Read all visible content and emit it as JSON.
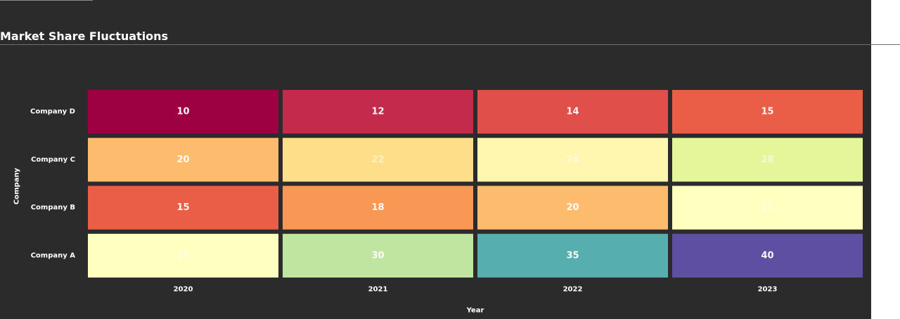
{
  "page": {
    "title": "Market Share Fluctuations"
  },
  "colors": {
    "panel_background": "#2b2b2b",
    "cell_border": "#2b2b2b",
    "label_text": "#ffffff",
    "colormap": "Spectral"
  },
  "chart_data": {
    "type": "heatmap",
    "title": "",
    "xlabel": "Year",
    "ylabel": "Company",
    "x": [
      "2020",
      "2021",
      "2022",
      "2023"
    ],
    "y": [
      "Company D",
      "Company C",
      "Company B",
      "Company A"
    ],
    "values": [
      [
        10,
        12,
        14,
        15
      ],
      [
        20,
        22,
        24,
        28
      ],
      [
        15,
        18,
        20,
        25
      ],
      [
        25,
        30,
        35,
        40
      ]
    ],
    "cell_colors": [
      [
        "#9e0142",
        "#c42a4c",
        "#e04f4a",
        "#ea5e47"
      ],
      [
        "#fdbb6d",
        "#fede88",
        "#fff6b0",
        "#e4f59a"
      ],
      [
        "#ea5e47",
        "#f99855",
        "#fdbb6d",
        "#ffffc0"
      ],
      [
        "#ffffc0",
        "#c0e5a0",
        "#56aeae",
        "#5e4fa2"
      ]
    ],
    "show_values": true,
    "legend": "none"
  }
}
